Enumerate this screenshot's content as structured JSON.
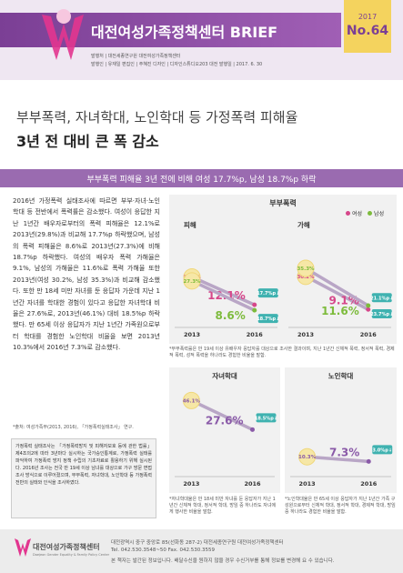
{
  "header": {
    "title": "대전여성가족정책센터 BRIEF",
    "year": "2017",
    "issue": "No.64",
    "meta": [
      "발행처 | 대전세종연구원 대전여성가족정책센터",
      "발행인 | 유재일   편집인 | 주혜진   디자인 | 디자인스튜디오203 대전   발행일 | 2017. 6. 30"
    ]
  },
  "headline": {
    "line1": "부부폭력, 자녀학대, 노인학대 등 가정폭력 피해율",
    "line2": "3년 전 대비 큰 폭 감소"
  },
  "banner": "부부폭력 피해율 3년 전에 비해 여성 17.7%p, 남성 18.7%p 하락",
  "body": {
    "paragraph": "2016년 가정폭력 실태조사에 따르면 부부·자녀·노인 학대 등 전반에서 폭력률은 감소했다. 여성이 응답한 지난 1년간 배우자로부터의 폭력 피해율은 12.1%로 2013년(29.8%)과 비교해 17.7%p 하락했으며, 남성의 폭력 피해율은 8.6%로 2013년(27.3%)에 비해 18.7%p 하락했다. 여성의 배우자 폭력 가해율은 9.1%, 남성의 가해율은 11.6%로 폭력 가해율 또한 2013년(여성 30.2%, 남성 35.3%)과 비교해 감소했다. 또한 만 18세 미만 자녀를 둔 응답자 가운데 지난 1년간 자녀를 학대한 경험이 있다고 응답한 자녀학대 비율은 27.6%로, 2013년(46.1%) 대비 18.5%p 하락했다. 만 65세 이상 응답자가 지난 1년간 가족원으로부터 학대를 경험한 노인학대 비율을 보면 2013년 10.3%에서 2016년 7.3%로 감소했다.",
    "source": "*출처: 여성가족부(2013, 2016), 「가정폭력실태조사」 연구."
  },
  "info_box": "가정폭력 실태조사는 「가정폭력방지 및 피해자보호 등에 관한 법률」 제4조의2에 따라 3년마다 실시하는 국가승인통계로, 가정폭력 실태를 파악하여 가정폭력 방지 정책 수립의 기초자료로 활용하기 위해 실시된다. 2016년 조사는 전국 만 19세 이상 남녀를 대상으로 가구 방문 면접조사 방식으로 이루어졌으며, 부부폭력, 자녀학대, 노인학대 등 가정폭력 전반의 실태와 인식을 조사하였다.",
  "domestic_violence": {
    "title": "부부폭력",
    "legend": [
      {
        "name": "여성",
        "color": "#d6478a"
      },
      {
        "name": "남성",
        "color": "#7dbb3c"
      }
    ],
    "panels": [
      {
        "type": "line",
        "title": "피해",
        "x": [
          "2013",
          "2016"
        ],
        "series": [
          {
            "values": [
              29.8,
              12.1
            ],
            "value_labels": [
              "29.8%",
              "12.1%"
            ],
            "change_label": "17.7%p↓"
          },
          {
            "values": [
              27.3,
              8.6
            ],
            "value_labels": [
              "27.3%",
              "8.6%"
            ],
            "change_label": "18.7%p↓"
          }
        ]
      },
      {
        "type": "line",
        "title": "가해",
        "x": [
          "2013",
          "2016"
        ],
        "series": [
          {
            "values": [
              30.2,
              9.1
            ],
            "value_labels": [
              "30.2%",
              "9.1%"
            ],
            "change_label": "21.1%p↓"
          },
          {
            "values": [
              35.3,
              11.6
            ],
            "value_labels": [
              "35.3%",
              "11.6%"
            ],
            "change_label": "23.7%p↓"
          }
        ]
      }
    ],
    "note": "*부부폭력률은 만 19세 이상 유배우자 응답자를 대상으로 조사한 결과이며, 지난 1년간 신체적 폭력, 정서적 폭력, 경제적 폭력, 성적 폭력을 하나라도 경험한 비율을 말함."
  },
  "abuse": [
    {
      "type": "line",
      "title": "자녀학대",
      "x": [
        "2013",
        "2016"
      ],
      "series": [
        {
          "color": "#8a5aa8",
          "values": [
            46.1,
            27.6
          ],
          "value_labels": [
            "46.1%",
            "27.6%"
          ],
          "change_label": "18.5%p↓"
        }
      ],
      "note": "*자녀학대율은 만 18세 미만 자녀를 둔 응답자가 지난 1년간 신체적 학대, 정서적 학대, 방임 중 하나라도 자녀에게 행사한 비율을 말함."
    },
    {
      "type": "line",
      "title": "노인학대",
      "x": [
        "2013",
        "2016"
      ],
      "series": [
        {
          "color": "#8a5aa8",
          "values": [
            10.3,
            7.3
          ],
          "value_labels": [
            "10.3%",
            "7.3%"
          ],
          "change_label": "3.0%p↓"
        }
      ],
      "note": "*노인학대율은 만 65세 이상 응답자가 지난 1년간 가족 구성원으로부터 신체적 학대, 정서적 학대, 경제적 학대, 방임 중 하나라도 경험한 비율을 말함."
    }
  ],
  "footer": {
    "logo": "대전여성가족정책센터",
    "logo_en": "Daejeon Gender Equality & Family Policy Center",
    "address": "대전광역시 중구 중앙로 85(선화동 287-2) 대전세종연구원 대전여성가족정책센터",
    "contact": "Tel. 042.530.3548~50  Fax. 042.530.3559",
    "notice": "본 책자는 발간된 정보입니다. 배달수신을 원하지 않을 경우 수신거부를 통해 정보를 변경해 요 수 있습니다."
  }
}
